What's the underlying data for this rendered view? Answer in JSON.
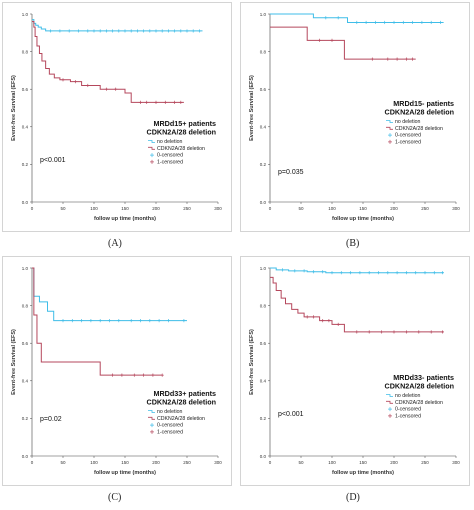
{
  "colors": {
    "no_deletion": "#3fbde8",
    "cdkn2a_deletion": "#b5475c",
    "axis": "#444444"
  },
  "chart_data": [
    {
      "type": "line",
      "panel_letter": "(A)",
      "ylabel": "Event-free Survival (EFS)",
      "xlabel": "follow up time (months)",
      "title_lines": [
        "MRDd15+ patients",
        "CDKN2A/28 deletion"
      ],
      "p_value": "p<0.001",
      "xlim": [
        0,
        300
      ],
      "ylim": [
        0,
        1.0
      ],
      "xticks": [
        "0",
        "50",
        "100",
        "150",
        "200",
        "250",
        "300"
      ],
      "yticks": [
        "0.0",
        "0.2",
        "0.4",
        "0.6",
        "0.8",
        "1.0"
      ],
      "legend": [
        "no deletion",
        "CDKN2A/28 deletion",
        "0-censored",
        "1-censored"
      ],
      "series": [
        {
          "name": "no deletion",
          "color": "#3fbde8",
          "points": [
            [
              0,
              0.97
            ],
            [
              3,
              0.95
            ],
            [
              6,
              0.94
            ],
            [
              10,
              0.93
            ],
            [
              15,
              0.92
            ],
            [
              22,
              0.91
            ],
            [
              275,
              0.91
            ]
          ],
          "censored": [
            30,
            45,
            60,
            75,
            90,
            100,
            110,
            120,
            130,
            140,
            150,
            160,
            170,
            180,
            190,
            200,
            210,
            220,
            230,
            240,
            250,
            260,
            270
          ]
        },
        {
          "name": "CDKN2A/28 deletion",
          "color": "#b5475c",
          "points": [
            [
              0,
              0.96
            ],
            [
              3,
              0.93
            ],
            [
              5,
              0.88
            ],
            [
              8,
              0.83
            ],
            [
              12,
              0.79
            ],
            [
              16,
              0.75
            ],
            [
              22,
              0.71
            ],
            [
              28,
              0.68
            ],
            [
              36,
              0.66
            ],
            [
              45,
              0.65
            ],
            [
              62,
              0.64
            ],
            [
              80,
              0.62
            ],
            [
              110,
              0.6
            ],
            [
              150,
              0.58
            ],
            [
              160,
              0.53
            ],
            [
              245,
              0.53
            ]
          ],
          "censored": [
            50,
            70,
            90,
            120,
            135,
            175,
            185,
            200,
            215,
            230,
            240
          ]
        }
      ]
    },
    {
      "type": "line",
      "panel_letter": "(B)",
      "ylabel": "Event-free Survival (EFS)",
      "xlabel": "follow up time (months)",
      "title_lines": [
        "MRDd15- patients",
        "CDKN2A/28 deletion"
      ],
      "p_value": "p=0.035",
      "xlim": [
        0,
        300
      ],
      "ylim": [
        0,
        1.0
      ],
      "xticks": [
        "0",
        "50",
        "100",
        "150",
        "200",
        "250",
        "300"
      ],
      "yticks": [
        "0.0",
        "0.2",
        "0.4",
        "0.6",
        "0.8",
        "1.0"
      ],
      "legend": [
        "no deletion",
        "CDKN2A/28 deletion",
        "0-censored",
        "1-censored"
      ],
      "series": [
        {
          "name": "no deletion",
          "color": "#3fbde8",
          "points": [
            [
              0,
              1.0
            ],
            [
              70,
              1.0
            ],
            [
              70,
              0.98
            ],
            [
              125,
              0.98
            ],
            [
              125,
              0.955
            ],
            [
              280,
              0.955
            ]
          ],
          "censored": [
            90,
            110,
            140,
            155,
            170,
            185,
            200,
            215,
            230,
            245,
            260,
            275
          ]
        },
        {
          "name": "CDKN2A/28 deletion",
          "color": "#b5475c",
          "points": [
            [
              0,
              0.93
            ],
            [
              60,
              0.93
            ],
            [
              60,
              0.86
            ],
            [
              120,
              0.86
            ],
            [
              120,
              0.76
            ],
            [
              235,
              0.76
            ]
          ],
          "censored": [
            80,
            100,
            165,
            190,
            205,
            220,
            230
          ]
        }
      ]
    },
    {
      "type": "line",
      "panel_letter": "(C)",
      "ylabel": "Event-free Survival (EFS)",
      "xlabel": "follow up time (months)",
      "title_lines": [
        "MRDd33+ patients",
        "CDKN2A/28 deletion"
      ],
      "p_value": "p=0.02",
      "xlim": [
        0,
        300
      ],
      "ylim": [
        0,
        1.0
      ],
      "xticks": [
        "0",
        "50",
        "100",
        "150",
        "200",
        "250",
        "300"
      ],
      "yticks": [
        "0.0",
        "0.2",
        "0.4",
        "0.6",
        "0.8",
        "1.0"
      ],
      "legend": [
        "no deletion",
        "CDKN2A/28 deletion",
        "0-censored",
        "1-censored"
      ],
      "series": [
        {
          "name": "no deletion",
          "color": "#3fbde8",
          "points": [
            [
              0,
              1.0
            ],
            [
              3,
              0.85
            ],
            [
              12,
              0.82
            ],
            [
              25,
              0.77
            ],
            [
              35,
              0.72
            ],
            [
              250,
              0.72
            ]
          ],
          "censored": [
            50,
            65,
            80,
            95,
            110,
            125,
            140,
            160,
            175,
            190,
            205,
            220,
            245
          ]
        },
        {
          "name": "CDKN2A/28 deletion",
          "color": "#b5475c",
          "points": [
            [
              0,
              1.0
            ],
            [
              3,
              0.75
            ],
            [
              8,
              0.6
            ],
            [
              15,
              0.5
            ],
            [
              110,
              0.5
            ],
            [
              110,
              0.43
            ],
            [
              210,
              0.43
            ]
          ],
          "censored": [
            130,
            145,
            165,
            180,
            195,
            210
          ]
        }
      ]
    },
    {
      "type": "line",
      "panel_letter": "(D)",
      "ylabel": "Event-free Survival (EFS)",
      "xlabel": "follow up time (months)",
      "title_lines": [
        "MRDd33- patients",
        "CDKN2A/28 deletion"
      ],
      "p_value": "p<0.001",
      "xlim": [
        0,
        300
      ],
      "ylim": [
        0,
        1.0
      ],
      "xticks": [
        "0",
        "50",
        "100",
        "150",
        "200",
        "250",
        "300"
      ],
      "yticks": [
        "0.0",
        "0.2",
        "0.4",
        "0.6",
        "0.8",
        "1.0"
      ],
      "legend": [
        "no deletion",
        "CDKN2A/28 deletion",
        "0-censored",
        "1-censored"
      ],
      "series": [
        {
          "name": "no deletion",
          "color": "#3fbde8",
          "points": [
            [
              0,
              1.0
            ],
            [
              10,
              0.99
            ],
            [
              30,
              0.985
            ],
            [
              60,
              0.98
            ],
            [
              90,
              0.975
            ],
            [
              280,
              0.975
            ]
          ],
          "censored": [
            20,
            40,
            55,
            70,
            85,
            100,
            115,
            130,
            145,
            160,
            175,
            190,
            205,
            220,
            235,
            250,
            265,
            278
          ]
        },
        {
          "name": "CDKN2A/28 deletion",
          "color": "#b5475c",
          "points": [
            [
              0,
              0.95
            ],
            [
              5,
              0.92
            ],
            [
              10,
              0.88
            ],
            [
              18,
              0.84
            ],
            [
              25,
              0.81
            ],
            [
              35,
              0.78
            ],
            [
              45,
              0.76
            ],
            [
              55,
              0.74
            ],
            [
              80,
              0.72
            ],
            [
              100,
              0.7
            ],
            [
              120,
              0.66
            ],
            [
              280,
              0.66
            ]
          ],
          "censored": [
            60,
            70,
            85,
            95,
            110,
            140,
            160,
            180,
            200,
            220,
            240,
            260,
            278
          ]
        }
      ]
    }
  ]
}
